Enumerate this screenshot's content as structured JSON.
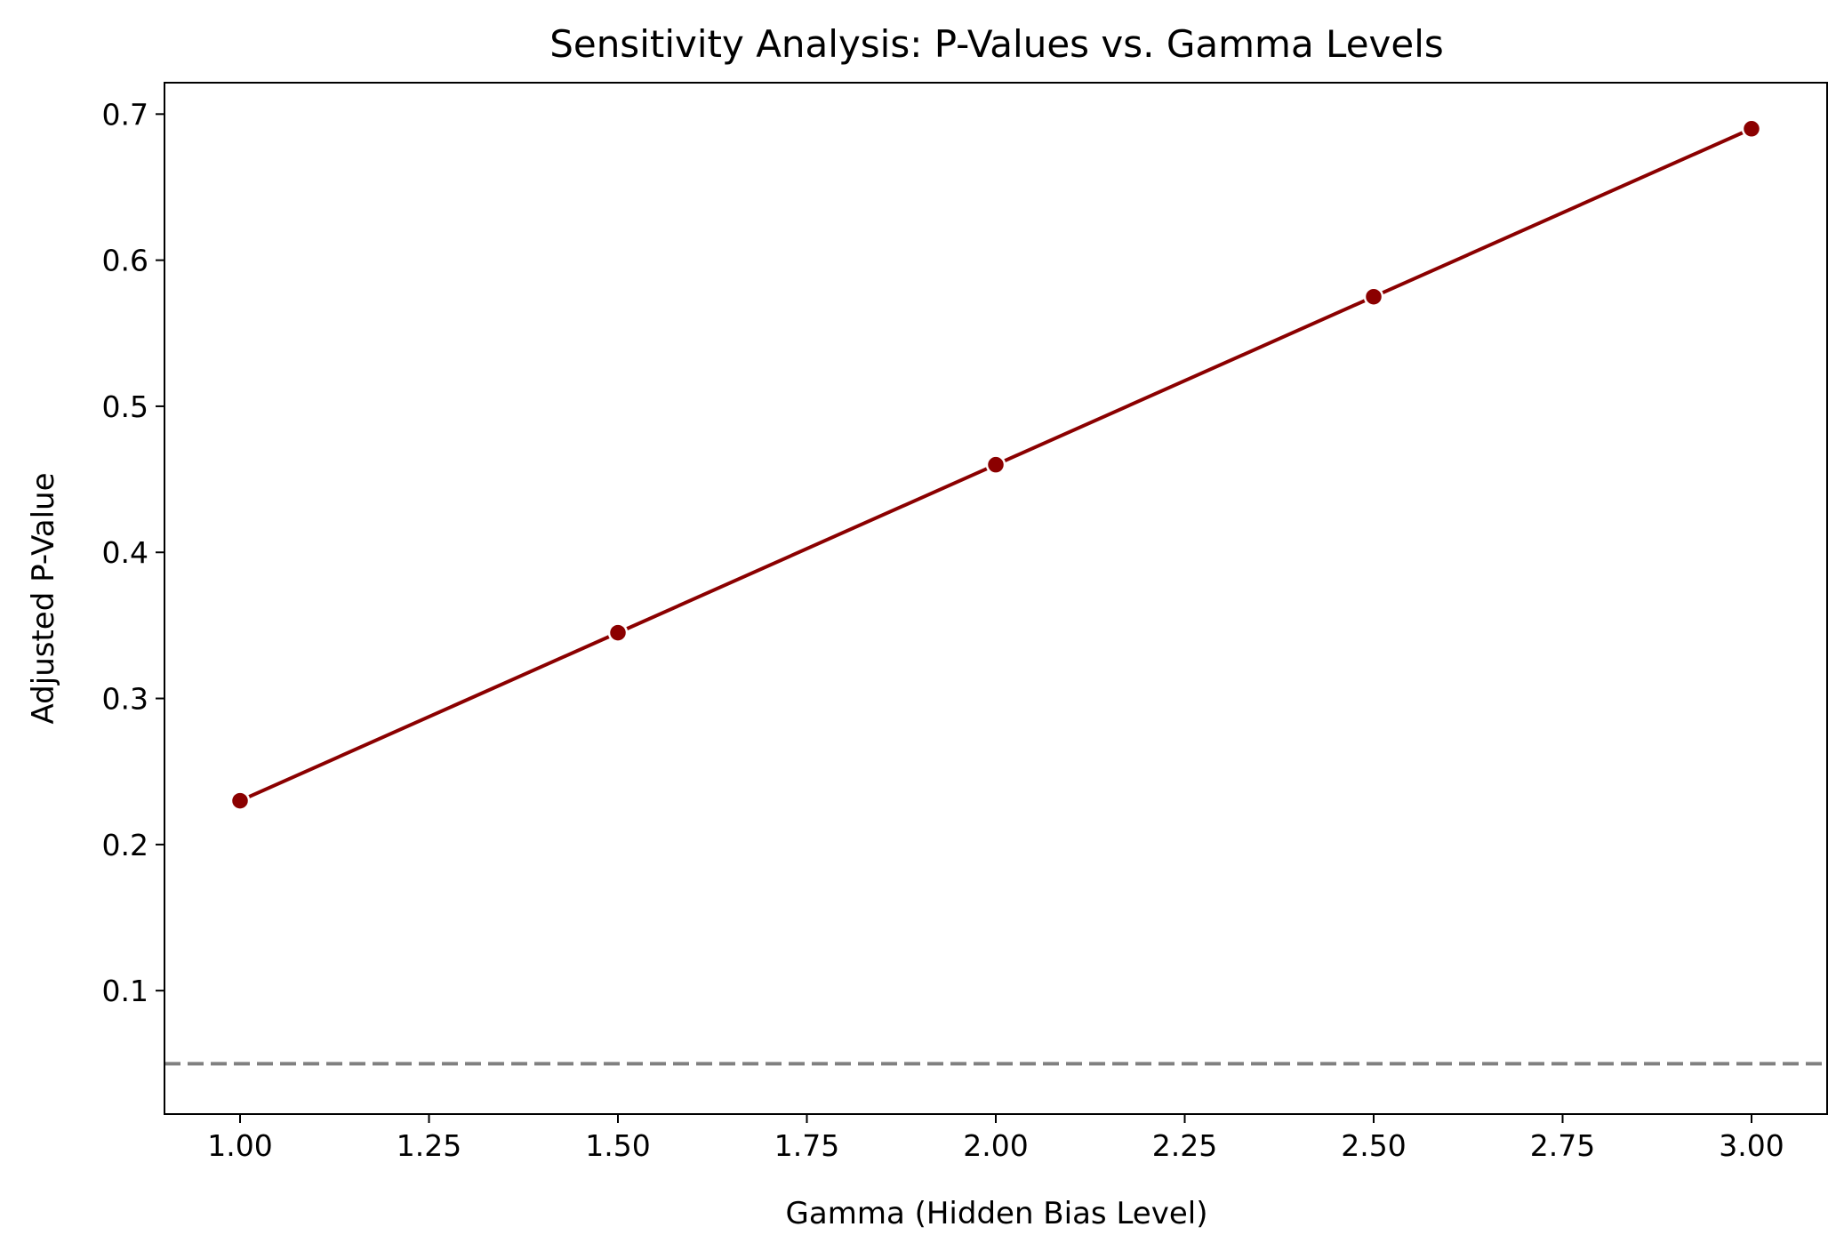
{
  "chart_data": {
    "type": "line",
    "title": "Sensitivity Analysis: P-Values vs. Gamma Levels",
    "xlabel": "Gamma (Hidden Bias Level)",
    "ylabel": "Adjusted P-Value",
    "xlim": [
      0.9,
      3.1
    ],
    "ylim": [
      0.0155,
      0.7215
    ],
    "x_ticks": [
      1.0,
      1.25,
      1.5,
      1.75,
      2.0,
      2.25,
      2.5,
      2.75,
      3.0
    ],
    "x_tick_labels": [
      "1.00",
      "1.25",
      "1.50",
      "1.75",
      "2.00",
      "2.25",
      "2.50",
      "2.75",
      "3.00"
    ],
    "y_ticks": [
      0.1,
      0.2,
      0.3,
      0.4,
      0.5,
      0.6,
      0.7
    ],
    "y_tick_labels": [
      "0.1",
      "0.2",
      "0.3",
      "0.4",
      "0.5",
      "0.6",
      "0.7"
    ],
    "grid": false,
    "series": [
      {
        "x": [
          1.0,
          1.5,
          2.0,
          2.5,
          3.0
        ],
        "values": [
          0.23,
          0.345,
          0.46,
          0.575,
          0.69
        ],
        "color": "#8b0000",
        "marker": "circle"
      }
    ],
    "reference_lines": [
      {
        "orientation": "horizontal",
        "y": 0.05,
        "style": "dashed",
        "color": "#808080"
      }
    ]
  }
}
